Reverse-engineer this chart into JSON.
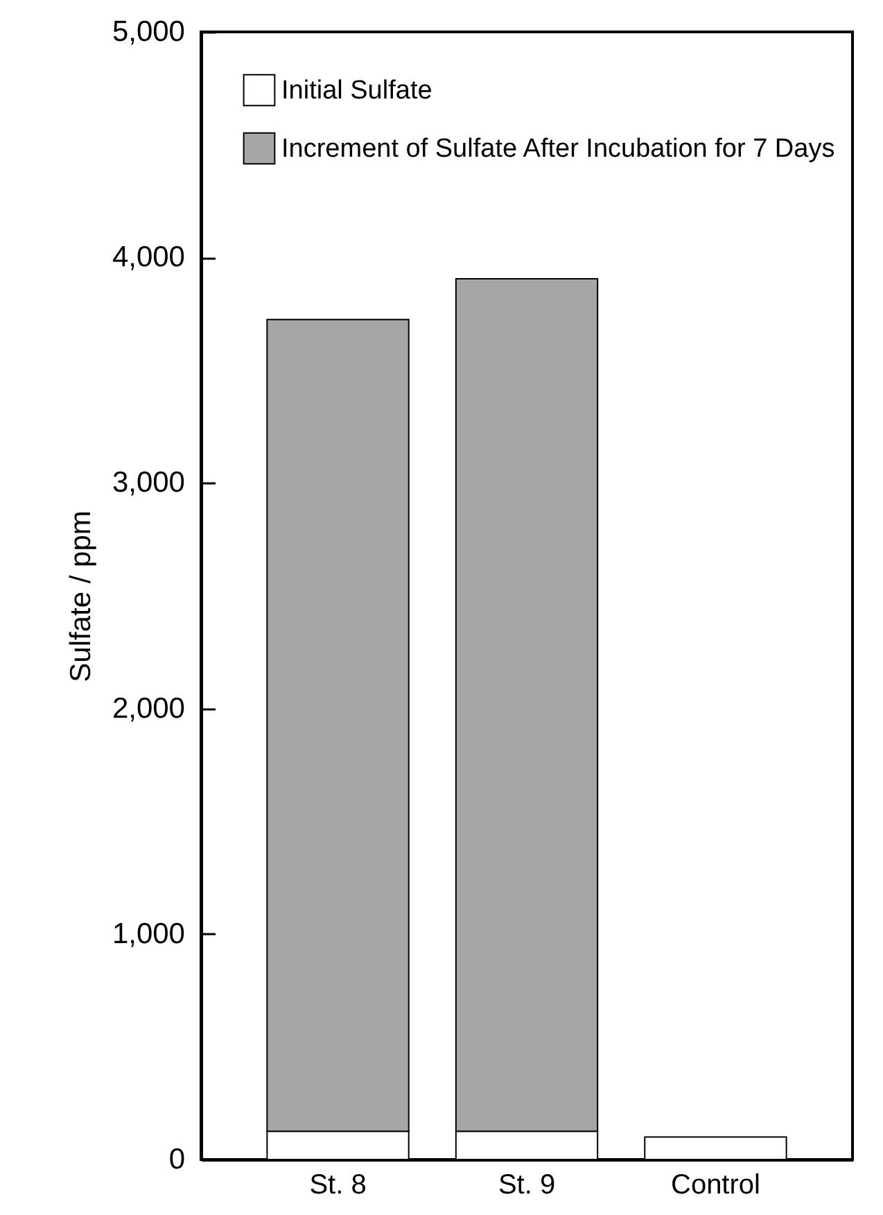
{
  "chart_data": {
    "type": "bar",
    "ylabel": "Sulfate / ppm",
    "categories": [
      "St. 8",
      "St. 9",
      "Control"
    ],
    "stacked": true,
    "series": [
      {
        "name": "Initial Sulfate",
        "color": "#ffffff",
        "values": [
          125,
          125,
          100
        ]
      },
      {
        "name": "Increment of Sulfate After Incubation for 7 Days",
        "color": "#a6a6a6",
        "values": [
          3600,
          3780,
          null
        ]
      }
    ],
    "ylim": [
      0,
      5000
    ],
    "yticks": [
      0,
      {
        "value": 1000,
        "label": "1,000"
      },
      {
        "value": 2000,
        "label": "2,000"
      },
      {
        "value": 3000,
        "label": "3,000"
      },
      {
        "value": 4000,
        "label": "4,000"
      },
      {
        "value": 5000,
        "label": "5,000"
      }
    ],
    "legend": "top left"
  }
}
